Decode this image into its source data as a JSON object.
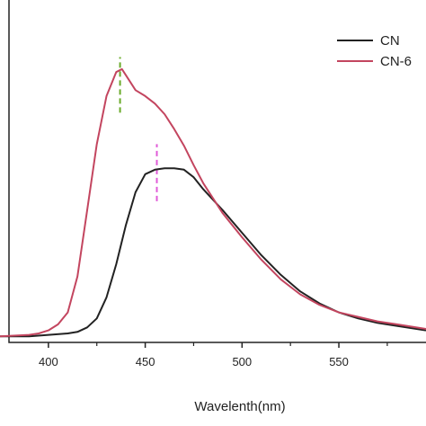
{
  "chart_data": {
    "type": "line",
    "xlabel": "Wavelenth(nm)",
    "ylabel": "",
    "xlim": [
      375,
      595
    ],
    "ylim": [
      -0.02,
      1.12
    ],
    "xticks": [
      400,
      450,
      500,
      550
    ],
    "xtick_labels": [
      "400",
      "450",
      "500",
      "550"
    ],
    "grid": false,
    "legend_position": "top-right",
    "series": [
      {
        "name": "CN",
        "color": "#222222",
        "x": [
          375,
          390,
          400,
          410,
          415,
          420,
          425,
          430,
          435,
          440,
          445,
          450,
          455,
          460,
          465,
          470,
          475,
          480,
          490,
          500,
          510,
          520,
          530,
          540,
          550,
          560,
          570,
          580,
          595
        ],
        "y": [
          0,
          0,
          0.005,
          0.01,
          0.015,
          0.03,
          0.06,
          0.13,
          0.24,
          0.37,
          0.48,
          0.54,
          0.555,
          0.56,
          0.56,
          0.555,
          0.53,
          0.49,
          0.42,
          0.345,
          0.27,
          0.205,
          0.15,
          0.11,
          0.08,
          0.06,
          0.045,
          0.035,
          0.02
        ]
      },
      {
        "name": "CN-6",
        "color": "#c3455f",
        "x": [
          375,
          390,
          395,
          400,
          405,
          410,
          415,
          420,
          425,
          430,
          435,
          438,
          440,
          445,
          450,
          455,
          460,
          465,
          470,
          475,
          480,
          490,
          500,
          510,
          520,
          530,
          540,
          550,
          560,
          570,
          580,
          595
        ],
        "y": [
          0,
          0.005,
          0.01,
          0.02,
          0.04,
          0.08,
          0.2,
          0.42,
          0.64,
          0.8,
          0.88,
          0.89,
          0.87,
          0.82,
          0.8,
          0.775,
          0.74,
          0.69,
          0.635,
          0.57,
          0.51,
          0.41,
          0.33,
          0.255,
          0.19,
          0.14,
          0.105,
          0.08,
          0.065,
          0.05,
          0.04,
          0.025
        ]
      }
    ],
    "annotations": [
      {
        "type": "dashed-marker",
        "x": 437,
        "y_from": 0.745,
        "y_to": 0.93,
        "color": "#6aaa2a"
      },
      {
        "type": "dashed-marker",
        "x": 456,
        "y_from": 0.45,
        "y_to": 0.64,
        "color": "#e05ad8"
      }
    ]
  }
}
